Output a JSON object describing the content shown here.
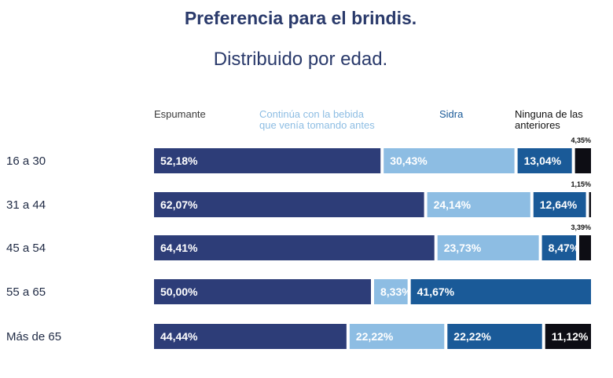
{
  "title": "Preferencia para el brindis.",
  "subtitle": "Distribuido por edad.",
  "chart_data": {
    "type": "bar",
    "orientation": "horizontal",
    "stacked": true,
    "title": "Preferencia para el brindis.",
    "subtitle": "Distribuido por edad.",
    "categories": [
      "16 a 30",
      "31 a 44",
      "45 a 54",
      "55 a 65",
      "Más de 65"
    ],
    "series": [
      {
        "name": "Espumante",
        "legend_lines": [
          "Espumante"
        ],
        "color": "#2d3d78",
        "legend_color": "#3a3a3a",
        "values": [
          52.18,
          62.07,
          64.41,
          50.0,
          44.44
        ],
        "labels": [
          "52,18%",
          "62,07%",
          "64,41%",
          "50,00%",
          "44,44%"
        ]
      },
      {
        "name": "Continúa con la bebida que venía tomando antes",
        "legend_lines": [
          "Continúa con la bebida",
          "que venía tomando antes"
        ],
        "color": "#8dbde3",
        "legend_color": "#8dbde3",
        "values": [
          30.43,
          24.14,
          23.73,
          8.33,
          22.22
        ],
        "labels": [
          "30,43%",
          "24,14%",
          "23,73%",
          "8,33%",
          "22,22%"
        ]
      },
      {
        "name": "Sidra",
        "legend_lines": [
          "Sidra"
        ],
        "color": "#1a5a98",
        "legend_color": "#1a5a98",
        "values": [
          13.04,
          12.64,
          8.47,
          41.67,
          22.22
        ],
        "labels": [
          "13,04%",
          "12,64%",
          "8,47%",
          "41,67%",
          "22,22%"
        ]
      },
      {
        "name": "Ninguna de las anteriores",
        "legend_lines": [
          "Ninguna de las",
          "anteriores"
        ],
        "color": "#0d0d14",
        "legend_color": "#111111",
        "values": [
          4.35,
          1.15,
          3.39,
          0,
          11.12
        ],
        "labels": [
          "4,35%",
          "1,15%",
          "3,39%",
          "",
          "11,12%"
        ]
      }
    ],
    "xlim": [
      0,
      100
    ]
  }
}
